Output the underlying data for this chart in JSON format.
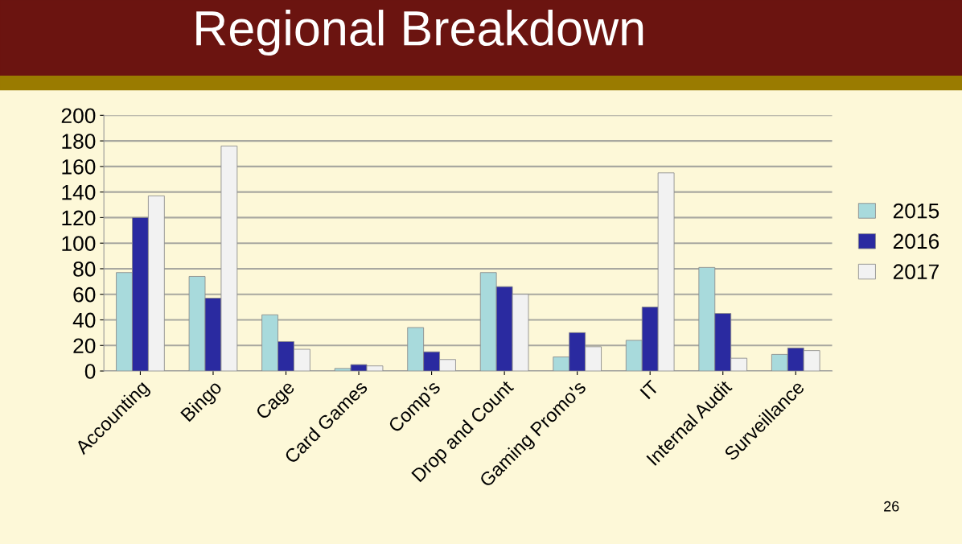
{
  "chart_data": {
    "type": "bar",
    "title": "Regional Breakdown",
    "categories": [
      "Accounting",
      "Bingo",
      "Cage",
      "Card Games",
      "Comp's",
      "Drop and Count",
      "Gaming Promo's",
      "IT",
      "Internal Audit",
      "Surveillance"
    ],
    "series": [
      {
        "name": "2015",
        "color": "#a8dadc",
        "values": [
          77,
          74,
          44,
          2,
          34,
          77,
          11,
          24,
          81,
          13
        ]
      },
      {
        "name": "2016",
        "color": "#2a2aa0",
        "values": [
          120,
          57,
          23,
          5,
          15,
          66,
          30,
          50,
          45,
          18
        ]
      },
      {
        "name": "2017",
        "color": "#f2f2f2",
        "values": [
          137,
          176,
          17,
          4,
          9,
          60,
          19,
          155,
          10,
          16
        ]
      }
    ],
    "ylim": [
      0,
      200
    ],
    "yticks": [
      0,
      20,
      40,
      60,
      80,
      100,
      120,
      140,
      160,
      180,
      200
    ],
    "grid": "y",
    "legend": "right",
    "annotations": [
      "26"
    ]
  }
}
